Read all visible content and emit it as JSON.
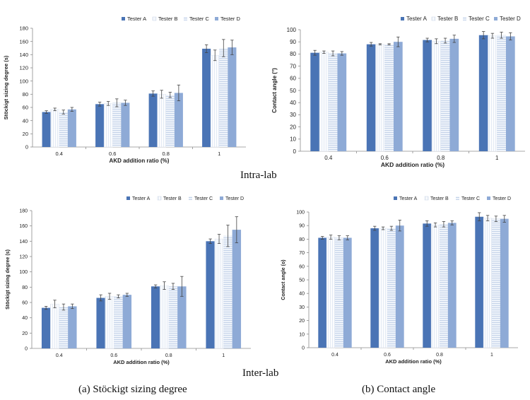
{
  "captions": {
    "row1": "Intra-lab",
    "row2": "Inter-lab",
    "col1": "(a) Stöckigt sizing degree",
    "col2": "(b) Contact angle"
  },
  "legend_colors": [
    "#4a74b5",
    "#f4f7fb",
    "#dbe4f1",
    "#8eaad6"
  ],
  "chart_data": [
    {
      "id": "intra-sizing",
      "type": "bar",
      "xlabel": "AKD addition ratio (%)",
      "ylabel": "Stöckigt sizing degree (s)",
      "categories": [
        "0.4",
        "0.6",
        "0.8",
        "1"
      ],
      "ylim": [
        0,
        180
      ],
      "yticks": [
        "0",
        "20",
        "40",
        "60",
        "80",
        "100",
        "120",
        "140",
        "160",
        "180"
      ],
      "legend_position": "top-right",
      "grid": false,
      "series": [
        {
          "name": "Tester A",
          "values": [
            53,
            65,
            81,
            149
          ],
          "errors": [
            2,
            3,
            4,
            6
          ]
        },
        {
          "name": "Tester B",
          "values": [
            57,
            66,
            80,
            139
          ],
          "errors": [
            2,
            3,
            6,
            8
          ]
        },
        {
          "name": "Tester C",
          "values": [
            53,
            67,
            79,
            150
          ],
          "errors": [
            3,
            6,
            4,
            13
          ]
        },
        {
          "name": "Tester D",
          "values": [
            57,
            67,
            82,
            151
          ],
          "errors": [
            3,
            4,
            12,
            11
          ]
        }
      ]
    },
    {
      "id": "intra-contact",
      "type": "bar",
      "xlabel": "AKD  addition ratio (%)",
      "ylabel": "Contact angle (°)",
      "categories": [
        "0.4",
        "0.6",
        "0.8",
        "1"
      ],
      "ylim": [
        0,
        100
      ],
      "yticks": [
        "0",
        "10",
        "20",
        "30",
        "40",
        "50",
        "60",
        "70",
        "80",
        "90",
        "100"
      ],
      "legend_position": "top-right",
      "grid": false,
      "series": [
        {
          "name": "Tester A",
          "values": [
            81,
            88,
            91.5,
            95.5
          ],
          "errors": [
            2,
            1.5,
            1.5,
            3
          ]
        },
        {
          "name": "Tester B",
          "values": [
            81.5,
            88,
            90.5,
            95
          ],
          "errors": [
            1,
            0.5,
            2,
            2
          ]
        },
        {
          "name": "Tester C",
          "values": [
            80.5,
            88,
            91,
            95.5
          ],
          "errors": [
            2,
            0.5,
            2,
            2.5
          ]
        },
        {
          "name": "Tester D",
          "values": [
            80.5,
            90,
            92.5,
            94.5
          ],
          "errors": [
            1.5,
            4,
            3,
            3
          ]
        }
      ]
    },
    {
      "id": "inter-sizing",
      "type": "bar",
      "xlabel": "AKD addition ratio (%)",
      "ylabel": "Stöckigt sizing degree (s)",
      "categories": [
        "0.4",
        "0.6",
        "0.8",
        "1"
      ],
      "ylim": [
        0,
        180
      ],
      "yticks": [
        "0",
        "20",
        "40",
        "60",
        "80",
        "100",
        "120",
        "140",
        "160",
        "180"
      ],
      "legend_position": "top-right",
      "grid": false,
      "series": [
        {
          "name": "Tester A",
          "values": [
            53,
            66,
            81,
            140
          ],
          "errors": [
            2,
            4,
            2,
            3
          ]
        },
        {
          "name": "Tester B",
          "values": [
            58,
            68,
            82,
            143
          ],
          "errors": [
            5,
            4,
            5,
            6
          ]
        },
        {
          "name": "Tester C",
          "values": [
            54,
            68,
            81,
            147
          ],
          "errors": [
            4,
            2,
            4,
            14
          ]
        },
        {
          "name": "Tester D",
          "values": [
            55,
            70,
            81,
            155
          ],
          "errors": [
            3,
            2,
            13,
            17
          ]
        }
      ]
    },
    {
      "id": "inter-contact",
      "type": "bar",
      "xlabel": "AKD addition ratio (%)",
      "ylabel": "Contact angle (o)",
      "categories": [
        "0.4",
        "0.6",
        "0.8",
        "1"
      ],
      "ylim": [
        0,
        100
      ],
      "yticks": [
        "0",
        "10",
        "20",
        "30",
        "40",
        "50",
        "60",
        "70",
        "80",
        "90",
        "100"
      ],
      "legend_position": "top-right",
      "grid": false,
      "series": [
        {
          "name": "Tester A",
          "values": [
            81,
            88,
            91.5,
            96.5
          ],
          "errors": [
            1,
            1.5,
            2,
            3
          ]
        },
        {
          "name": "Tester B",
          "values": [
            81.5,
            88,
            90.5,
            95.5
          ],
          "errors": [
            1.5,
            1,
            1.5,
            2
          ]
        },
        {
          "name": "Tester C",
          "values": [
            81,
            88,
            91,
            95
          ],
          "errors": [
            1.5,
            1.5,
            2,
            2
          ]
        },
        {
          "name": "Tester D",
          "values": [
            81,
            90,
            92,
            95
          ],
          "errors": [
            1.5,
            4,
            1.5,
            2.5
          ]
        }
      ]
    }
  ]
}
